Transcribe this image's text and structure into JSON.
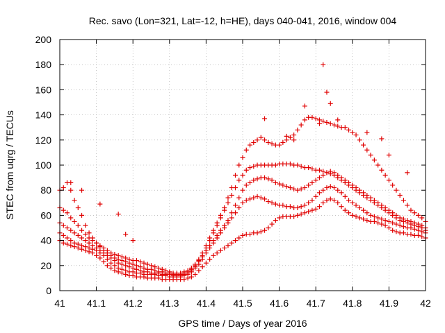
{
  "chart_data": {
    "type": "scatter",
    "title": "Rec. savo (Lon=321, Lat=-12, h=HE), days 040-041, 2016, window 004",
    "xlabel": "GPS time / Days of year 2016",
    "ylabel": "STEC from uqrg / TECUs",
    "xlim": [
      41,
      42
    ],
    "ylim": [
      0,
      200
    ],
    "xticks": [
      41,
      41.1,
      41.2,
      41.3,
      41.4,
      41.5,
      41.6,
      41.7,
      41.8,
      41.9,
      42
    ],
    "xtick_labels": [
      "41",
      "41.1",
      "41.2",
      "41.3",
      "41.4",
      "41.5",
      "41.6",
      "41.7",
      "41.8",
      "41.9",
      "42"
    ],
    "yticks": [
      0,
      20,
      40,
      60,
      80,
      100,
      120,
      140,
      160,
      180,
      200
    ],
    "ytick_labels": [
      "0",
      "20",
      "40",
      "60",
      "80",
      "100",
      "120",
      "140",
      "160",
      "180",
      "200"
    ],
    "grid": true,
    "legend": "none",
    "marker": "+",
    "color": "#e00000",
    "series": [
      {
        "x": [
          41.0,
          41.01,
          41.02,
          41.03,
          41.04,
          41.05,
          41.06,
          41.07,
          41.08,
          41.09,
          41.1,
          41.11,
          41.12,
          41.13,
          41.14,
          41.15,
          41.16,
          41.17,
          41.18,
          41.19,
          41.2,
          41.21,
          41.22,
          41.23,
          41.24,
          41.25,
          41.26,
          41.27,
          41.28,
          41.29,
          41.3,
          41.31,
          41.32,
          41.33,
          41.34,
          41.35,
          41.36,
          41.37,
          41.38,
          41.39,
          41.4,
          41.41,
          41.42,
          41.43,
          41.44,
          41.45,
          41.46,
          41.47,
          41.48,
          41.49,
          41.5,
          41.51,
          41.52,
          41.53,
          41.54,
          41.55,
          41.56,
          41.57,
          41.58,
          41.59,
          41.6,
          41.61,
          41.62,
          41.63,
          41.64,
          41.65,
          41.66,
          41.67,
          41.68,
          41.69,
          41.7,
          41.71,
          41.72,
          41.73,
          41.74,
          41.75,
          41.76,
          41.77,
          41.78,
          41.79,
          41.8,
          41.81,
          41.82,
          41.83,
          41.84,
          41.85,
          41.86,
          41.87,
          41.88,
          41.89,
          41.9,
          41.91,
          41.92,
          41.93,
          41.94,
          41.95,
          41.96,
          41.97,
          41.98,
          41.99,
          42.0
        ],
        "y": [
          40,
          38,
          37,
          36,
          35,
          34,
          33,
          32,
          31,
          30,
          28,
          26,
          23,
          20,
          18,
          16,
          15,
          14,
          13,
          12,
          12,
          11,
          11,
          11,
          10,
          10,
          10,
          10,
          9,
          9,
          9,
          9,
          9,
          9,
          9,
          10,
          11,
          13,
          16,
          19,
          22,
          25,
          28,
          30,
          32,
          34,
          36,
          38,
          40,
          42,
          44,
          45,
          45,
          46,
          46,
          47,
          48,
          50,
          53,
          56,
          58,
          59,
          59,
          59,
          59,
          60,
          61,
          62,
          63,
          64,
          65,
          67,
          70,
          72,
          73,
          72,
          70,
          67,
          64,
          62,
          60,
          59,
          58,
          57,
          56,
          55,
          55,
          54,
          53,
          52,
          50,
          48,
          47,
          46,
          46,
          45,
          45,
          44,
          44,
          43,
          42
        ]
      },
      {
        "x": [
          41.0,
          41.01,
          41.02,
          41.03,
          41.04,
          41.05,
          41.06,
          41.07,
          41.08,
          41.09,
          41.1,
          41.11,
          41.12,
          41.13,
          41.14,
          41.15,
          41.16,
          41.17,
          41.18,
          41.19,
          41.2,
          41.21,
          41.22,
          41.23,
          41.24,
          41.25,
          41.26,
          41.27,
          41.28,
          41.29,
          41.3,
          41.31,
          41.32,
          41.33,
          41.34,
          41.35,
          41.36,
          41.37,
          41.38,
          41.39,
          41.4,
          41.41,
          41.42,
          41.43,
          41.44,
          41.45,
          41.46,
          41.47,
          41.48,
          41.49,
          41.5,
          41.51,
          41.52,
          41.53,
          41.54,
          41.55,
          41.56,
          41.57,
          41.58,
          41.59,
          41.6,
          41.61,
          41.62,
          41.63,
          41.64,
          41.65,
          41.66,
          41.67,
          41.68,
          41.69,
          41.7,
          41.71,
          41.72,
          41.73,
          41.74,
          41.75,
          41.76,
          41.77,
          41.78,
          41.79,
          41.8,
          41.81,
          41.82,
          41.83,
          41.84,
          41.85,
          41.86,
          41.87,
          41.88,
          41.89,
          41.9,
          41.91,
          41.92,
          41.93,
          41.94,
          41.95,
          41.96,
          41.97,
          41.98,
          41.99,
          42.0
        ],
        "y": [
          46,
          44,
          42,
          40,
          38,
          37,
          36,
          35,
          34,
          33,
          32,
          30,
          28,
          25,
          22,
          20,
          18,
          17,
          16,
          15,
          15,
          14,
          14,
          13,
          13,
          13,
          13,
          12,
          12,
          12,
          11,
          11,
          11,
          11,
          12,
          13,
          15,
          18,
          21,
          25,
          30,
          34,
          38,
          42,
          46,
          50,
          54,
          58,
          62,
          66,
          70,
          72,
          73,
          74,
          75,
          74,
          73,
          71,
          70,
          69,
          68,
          68,
          67,
          67,
          66,
          66,
          67,
          68,
          70,
          72,
          75,
          78,
          80,
          82,
          83,
          82,
          80,
          78,
          75,
          72,
          70,
          68,
          66,
          64,
          62,
          60,
          59,
          58,
          57,
          56,
          55,
          54,
          53,
          52,
          51,
          50,
          50,
          49,
          48,
          47,
          46
        ]
      },
      {
        "x": [
          41.0,
          41.01,
          41.02,
          41.03,
          41.04,
          41.05,
          41.06,
          41.07,
          41.08,
          41.09,
          41.1,
          41.11,
          41.12,
          41.13,
          41.14,
          41.15,
          41.16,
          41.17,
          41.18,
          41.19,
          41.2,
          41.21,
          41.22,
          41.23,
          41.24,
          41.25,
          41.26,
          41.27,
          41.28,
          41.29,
          41.3,
          41.31,
          41.32,
          41.33,
          41.34,
          41.35,
          41.36,
          41.37,
          41.38,
          41.39,
          41.4,
          41.41,
          41.42,
          41.43,
          41.44,
          41.45,
          41.46,
          41.47,
          41.48,
          41.49,
          41.5,
          41.51,
          41.52,
          41.53,
          41.54,
          41.55,
          41.56,
          41.57,
          41.58,
          41.59,
          41.6,
          41.61,
          41.62,
          41.63,
          41.64,
          41.65,
          41.66,
          41.67,
          41.68,
          41.69,
          41.7,
          41.71,
          41.72,
          41.73,
          41.74,
          41.75,
          41.76,
          41.77,
          41.78,
          41.79,
          41.8,
          41.81,
          41.82,
          41.83,
          41.84,
          41.85,
          41.86,
          41.87,
          41.88,
          41.89,
          41.9,
          41.91,
          41.92,
          41.93,
          41.94,
          41.95,
          41.96,
          41.97,
          41.98,
          41.99,
          42.0
        ],
        "y": [
          54,
          52,
          50,
          48,
          46,
          44,
          42,
          40,
          38,
          36,
          34,
          32,
          30,
          28,
          26,
          24,
          22,
          21,
          20,
          19,
          18,
          17,
          16,
          15,
          15,
          14,
          14,
          14,
          13,
          13,
          13,
          12,
          12,
          12,
          13,
          14,
          16,
          19,
          23,
          27,
          32,
          36,
          40,
          44,
          48,
          52,
          56,
          62,
          68,
          74,
          80,
          84,
          86,
          88,
          89,
          90,
          90,
          89,
          88,
          86,
          85,
          84,
          83,
          82,
          81,
          80,
          81,
          82,
          84,
          86,
          88,
          90,
          92,
          94,
          95,
          94,
          92,
          90,
          88,
          86,
          84,
          82,
          80,
          78,
          76,
          74,
          72,
          70,
          68,
          66,
          64,
          62,
          60,
          58,
          57,
          56,
          55,
          54,
          53,
          52,
          50
        ]
      },
      {
        "x": [
          41.0,
          41.01,
          41.02,
          41.03,
          41.04,
          41.05,
          41.06,
          41.07,
          41.08,
          41.09,
          41.1,
          41.11,
          41.12,
          41.13,
          41.14,
          41.15,
          41.16,
          41.17,
          41.18,
          41.19,
          41.2,
          41.21,
          41.22,
          41.23,
          41.24,
          41.25,
          41.26,
          41.27,
          41.28,
          41.29,
          41.3,
          41.31,
          41.32,
          41.33,
          41.34,
          41.35,
          41.36,
          41.37,
          41.38,
          41.39,
          41.4,
          41.41,
          41.42,
          41.43,
          41.44,
          41.45,
          41.46,
          41.47,
          41.48,
          41.49,
          41.5,
          41.51,
          41.52,
          41.53,
          41.54,
          41.55,
          41.56,
          41.57,
          41.58,
          41.59,
          41.6,
          41.61,
          41.62,
          41.63,
          41.64,
          41.65,
          41.66,
          41.67,
          41.68,
          41.69,
          41.7,
          41.71,
          41.72,
          41.73,
          41.74,
          41.75,
          41.76,
          41.77,
          41.78,
          41.79,
          41.8,
          41.81,
          41.82,
          41.83,
          41.84,
          41.85,
          41.86,
          41.87,
          41.88,
          41.89,
          41.9,
          41.91,
          41.92,
          41.93,
          41.94,
          41.95,
          41.96,
          41.97,
          41.98,
          41.99,
          42.0
        ],
        "y": [
          66,
          64,
          62,
          58,
          55,
          52,
          48,
          45,
          42,
          40,
          38,
          35,
          32,
          30,
          28,
          26,
          25,
          24,
          23,
          22,
          21,
          20,
          19,
          18,
          17,
          17,
          16,
          15,
          15,
          14,
          14,
          13,
          13,
          13,
          14,
          15,
          17,
          20,
          24,
          28,
          34,
          40,
          46,
          52,
          58,
          64,
          70,
          76,
          82,
          88,
          92,
          96,
          98,
          99,
          100,
          100,
          100,
          100,
          100,
          100,
          101,
          101,
          101,
          101,
          100,
          100,
          99,
          98,
          98,
          97,
          96,
          96,
          95,
          94,
          93,
          92,
          90,
          88,
          86,
          84,
          82,
          80,
          78,
          76,
          74,
          72,
          70,
          68,
          66,
          64,
          62,
          60,
          58,
          56,
          55,
          54,
          53,
          52,
          51,
          50,
          48
        ]
      },
      {
        "x": [
          41.0,
          41.01,
          41.02,
          41.03,
          41.04,
          41.05,
          41.06,
          41.07,
          41.08,
          41.09,
          41.1,
          41.11,
          41.12,
          41.13,
          41.14,
          41.15,
          41.16,
          41.17,
          41.18,
          41.19,
          41.2,
          41.21,
          41.22,
          41.23,
          41.24,
          41.25,
          41.26,
          41.27,
          41.28,
          41.29,
          41.3,
          41.31,
          41.32,
          41.33,
          41.34,
          41.35,
          41.36,
          41.37,
          41.38,
          41.39,
          41.4,
          41.41,
          41.42,
          41.43,
          41.44,
          41.45,
          41.46,
          41.47,
          41.48,
          41.49,
          41.5,
          41.51,
          41.52,
          41.53,
          41.54,
          41.55,
          41.56,
          41.57,
          41.58,
          41.59,
          41.6,
          41.61,
          41.62,
          41.63,
          41.64,
          41.65,
          41.66,
          41.67,
          41.68,
          41.69,
          41.7,
          41.71,
          41.72,
          41.73,
          41.74,
          41.75,
          41.76,
          41.77,
          41.78,
          41.79,
          41.8,
          41.81,
          41.82,
          41.83,
          41.84,
          41.85,
          41.86,
          41.87,
          41.88,
          41.89,
          41.9,
          41.91,
          41.92,
          41.93,
          41.94,
          41.95,
          41.96,
          41.97,
          41.98,
          41.99,
          42.0
        ],
        "y": [
          80,
          82,
          86,
          80,
          72,
          66,
          60,
          52,
          46,
          42,
          38,
          36,
          34,
          32,
          30,
          29,
          28,
          27,
          26,
          25,
          24,
          24,
          23,
          22,
          21,
          20,
          19,
          18,
          17,
          16,
          15,
          14,
          14,
          14,
          15,
          16,
          18,
          21,
          25,
          30,
          36,
          42,
          48,
          54,
          60,
          66,
          74,
          82,
          92,
          100,
          106,
          112,
          116,
          118,
          120,
          122,
          120,
          118,
          117,
          116,
          116,
          118,
          120,
          122,
          124,
          128,
          132,
          136,
          138,
          138,
          137,
          136,
          135,
          134,
          133,
          132,
          131,
          130,
          130,
          128,
          126,
          124,
          120,
          116,
          112,
          108,
          104,
          100,
          96,
          92,
          88,
          84,
          80,
          76,
          72,
          68,
          64,
          62,
          60,
          58,
          55
        ]
      },
      {
        "x": [
          41.03,
          41.06,
          41.11,
          41.16,
          41.18,
          41.2,
          41.56,
          41.62,
          41.64,
          41.67,
          41.71,
          41.72,
          41.73,
          41.74,
          41.76,
          41.84,
          41.88,
          41.9,
          41.95
        ],
        "y": [
          86,
          80,
          69,
          61,
          45,
          40,
          137,
          123,
          120,
          147,
          133,
          180,
          158,
          149,
          136,
          126,
          121,
          108,
          94
        ]
      }
    ]
  }
}
